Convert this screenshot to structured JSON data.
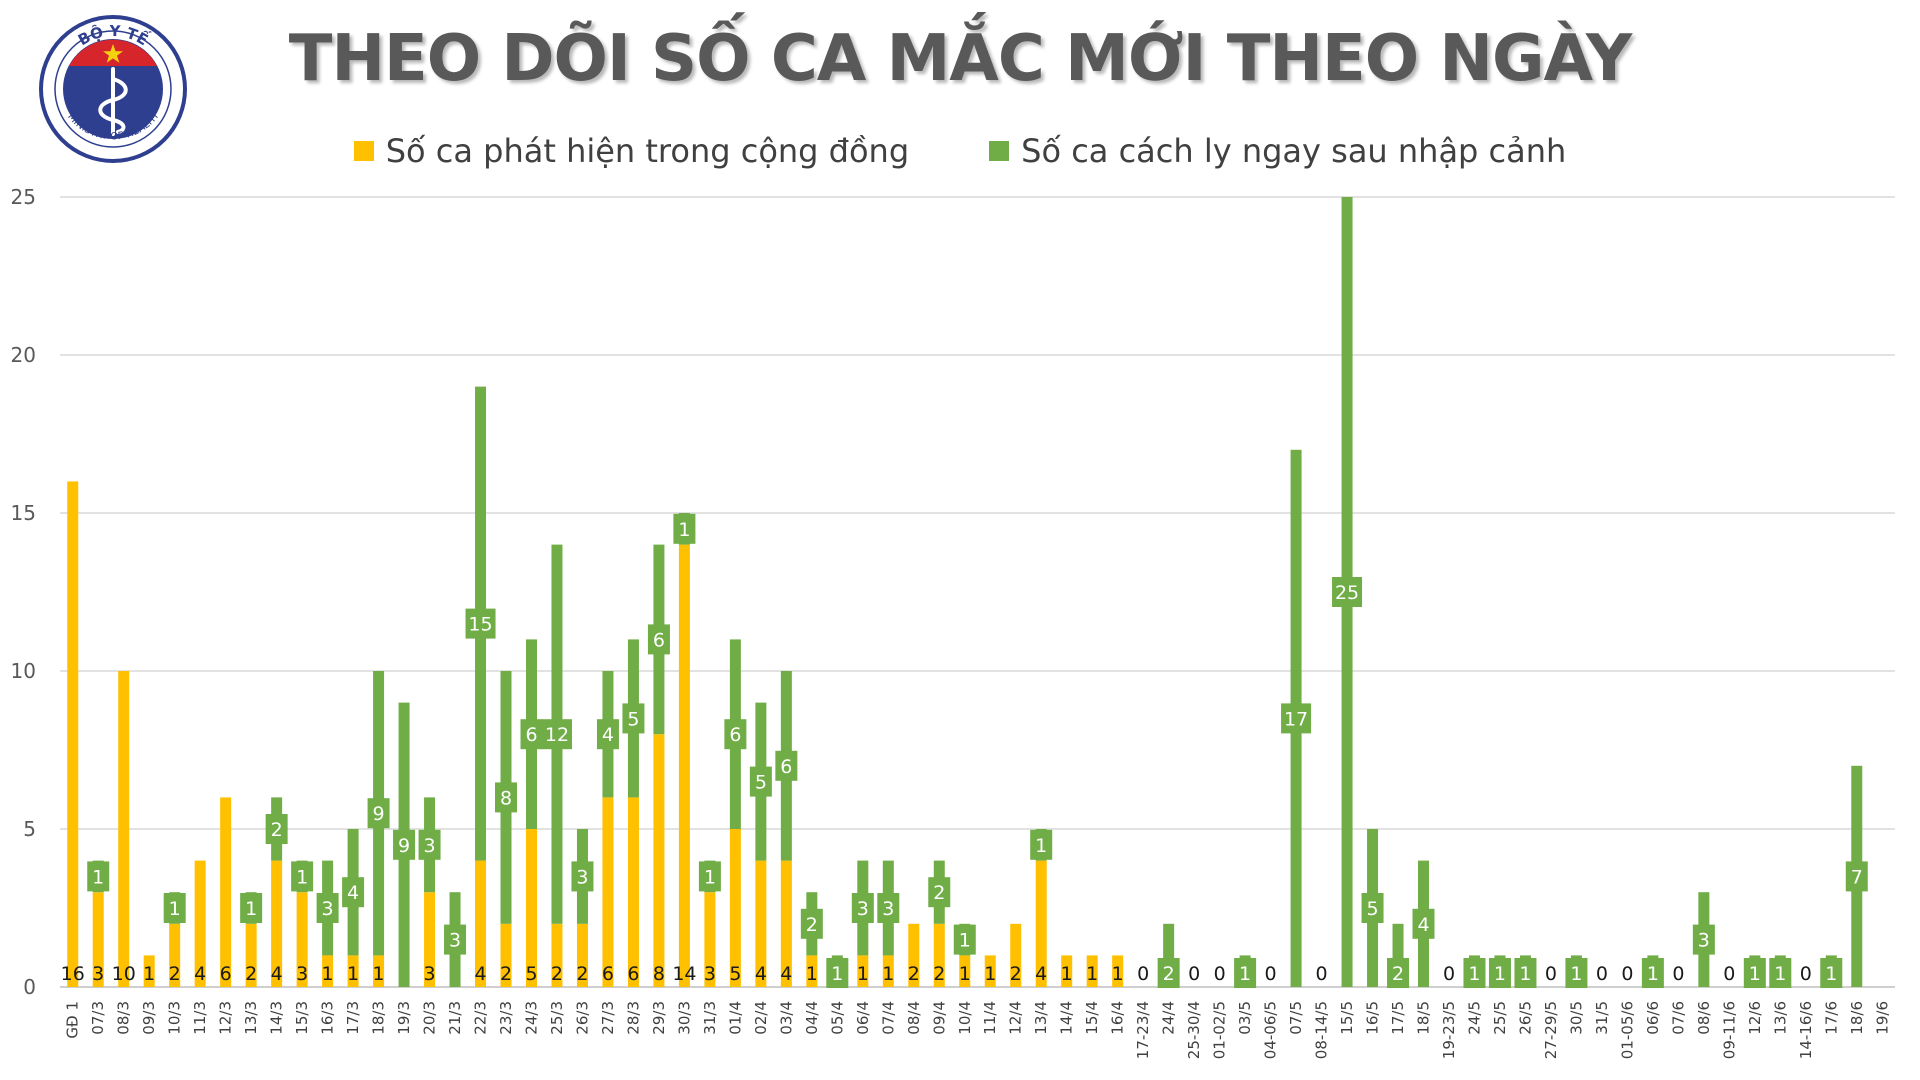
{
  "logo": {
    "top_text": "BỘ Y TẾ",
    "bottom_text": "MINISTRY OF HEALTH",
    "colors": {
      "ring": "#2f3f8f",
      "red": "#d7262b",
      "star": "#f5d20f"
    }
  },
  "colors": {
    "community": "#ffc000",
    "quarantine": "#70ad47",
    "grid": "#d9d9d9",
    "title": "#595959"
  },
  "chart_data": {
    "type": "bar",
    "stacked": true,
    "title": "THEO DÕI SỐ CA MẮC MỚI THEO NGÀY",
    "xlabel": "",
    "ylabel": "",
    "ylim": [
      0,
      25
    ],
    "yticks": [
      0,
      5,
      10,
      15,
      20,
      25
    ],
    "grid": true,
    "legend_position": "top",
    "categories": [
      "GĐ 1",
      "07/3",
      "08/3",
      "09/3",
      "10/3",
      "11/3",
      "12/3",
      "13/3",
      "14/3",
      "15/3",
      "16/3",
      "17/3",
      "18/3",
      "19/3",
      "20/3",
      "21/3",
      "22/3",
      "23/3",
      "24/3",
      "25/3",
      "26/3",
      "27/3",
      "28/3",
      "29/3",
      "30/3",
      "31/3",
      "01/4",
      "02/4",
      "03/4",
      "04/4",
      "05/4",
      "06/4",
      "07/4",
      "08/4",
      "09/4",
      "10/4",
      "11/4",
      "12/4",
      "13/4",
      "14/4",
      "15/4",
      "16/4",
      "17-23/4",
      "24/4",
      "25-30/4",
      "01-02/5",
      "03/5",
      "04-06/5",
      "07/5",
      "08-14/5",
      "15/5",
      "16/5",
      "17/5",
      "18/5",
      "19-23/5",
      "24/5",
      "25/5",
      "26/5",
      "27-29/5",
      "30/5",
      "31/5",
      "01-05/6",
      "06/6",
      "07/6",
      "08/6",
      "09-11/6",
      "12/6",
      "13/6",
      "14-16/6",
      "17/6",
      "18/6",
      "19/6"
    ],
    "series": [
      {
        "name": "Số ca phát hiện trong cộng đồng",
        "color": "#ffc000",
        "values": [
          16,
          3,
          10,
          1,
          2,
          4,
          6,
          2,
          4,
          3,
          1,
          1,
          1,
          0,
          3,
          0,
          4,
          2,
          5,
          2,
          2,
          6,
          6,
          8,
          14,
          3,
          5,
          4,
          4,
          1,
          0,
          1,
          1,
          2,
          2,
          1,
          1,
          2,
          4,
          1,
          1,
          1,
          0,
          0,
          0,
          0,
          0,
          0,
          0,
          0,
          0,
          0,
          0,
          0,
          0,
          0,
          0,
          0,
          0,
          0,
          0,
          0,
          0,
          0,
          0,
          0,
          0,
          0,
          0,
          0,
          0,
          0
        ]
      },
      {
        "name": "Số ca cách ly ngay sau nhập cảnh",
        "color": "#70ad47",
        "values": [
          0,
          1,
          0,
          0,
          1,
          0,
          0,
          1,
          2,
          1,
          3,
          4,
          9,
          9,
          3,
          3,
          15,
          8,
          6,
          12,
          3,
          4,
          5,
          6,
          1,
          1,
          6,
          5,
          6,
          2,
          1,
          3,
          3,
          0,
          2,
          1,
          0,
          0,
          1,
          0,
          0,
          0,
          0,
          2,
          0,
          0,
          1,
          0,
          17,
          0,
          25,
          5,
          2,
          4,
          0,
          1,
          1,
          1,
          0,
          1,
          0,
          0,
          1,
          0,
          3,
          0,
          1,
          1,
          0,
          1,
          7,
          0
        ]
      }
    ],
    "bar_labels": [
      {
        "y": "16"
      },
      {
        "y": "3",
        "g": "1"
      },
      {
        "y": "10"
      },
      {
        "y": "1"
      },
      {
        "y": "2",
        "g": "1"
      },
      {
        "y": "4"
      },
      {
        "y": "6"
      },
      {
        "y": "2",
        "g": "1"
      },
      {
        "y": "4",
        "g": "2"
      },
      {
        "y": "3",
        "g": "1"
      },
      {
        "y": "1",
        "g": "3"
      },
      {
        "y": "1",
        "g": "4"
      },
      {
        "y": "1",
        "g": "9"
      },
      {
        "g": "9"
      },
      {
        "y": "3",
        "g": "3"
      },
      {
        "g": "3"
      },
      {
        "y": "4",
        "g": "15"
      },
      {
        "y": "2",
        "g": "8"
      },
      {
        "y": "5",
        "g": "6"
      },
      {
        "y": "2",
        "g": "12"
      },
      {
        "y": "2",
        "g": "3"
      },
      {
        "y": "6",
        "g": "4"
      },
      {
        "y": "6",
        "g": "5"
      },
      {
        "y": "8",
        "g": "6"
      },
      {
        "y": "14",
        "g": "1"
      },
      {
        "y": "3",
        "g": "1"
      },
      {
        "y": "5",
        "g": "6"
      },
      {
        "y": "4",
        "g": "5"
      },
      {
        "y": "4",
        "g": "6"
      },
      {
        "y": "1",
        "g": "2"
      },
      {
        "g": "1"
      },
      {
        "y": "1",
        "g": "3"
      },
      {
        "y": "1",
        "g": "3"
      },
      {
        "y": "2"
      },
      {
        "y": "2",
        "g": "2"
      },
      {
        "y": "1",
        "g": "1"
      },
      {
        "y": "1"
      },
      {
        "y": "2"
      },
      {
        "y": "4",
        "g": "1"
      },
      {
        "y": "1"
      },
      {
        "y": "1"
      },
      {
        "y": "1"
      },
      {
        "z": "0"
      },
      {
        "g": "2"
      },
      {
        "z": "0"
      },
      {
        "z": "0"
      },
      {
        "g": "1"
      },
      {
        "z": "0"
      },
      {
        "g": "17"
      },
      {
        "z": "0"
      },
      {
        "g": "25"
      },
      {
        "g": "5"
      },
      {
        "g": "2"
      },
      {
        "g": "4"
      },
      {
        "z": "0"
      },
      {
        "g": "1"
      },
      {
        "g": "1"
      },
      {
        "g": "1"
      },
      {
        "z": "0"
      },
      {
        "g": "1"
      },
      {
        "z": "0"
      },
      {
        "z": "0"
      },
      {
        "g": "1"
      },
      {
        "z": "0"
      },
      {
        "g": "3"
      },
      {
        "z": "0"
      },
      {
        "g": "1"
      },
      {
        "g": "1"
      },
      {
        "z": "0"
      },
      {
        "g": "1"
      },
      {
        "g": "7"
      },
      {}
    ]
  }
}
